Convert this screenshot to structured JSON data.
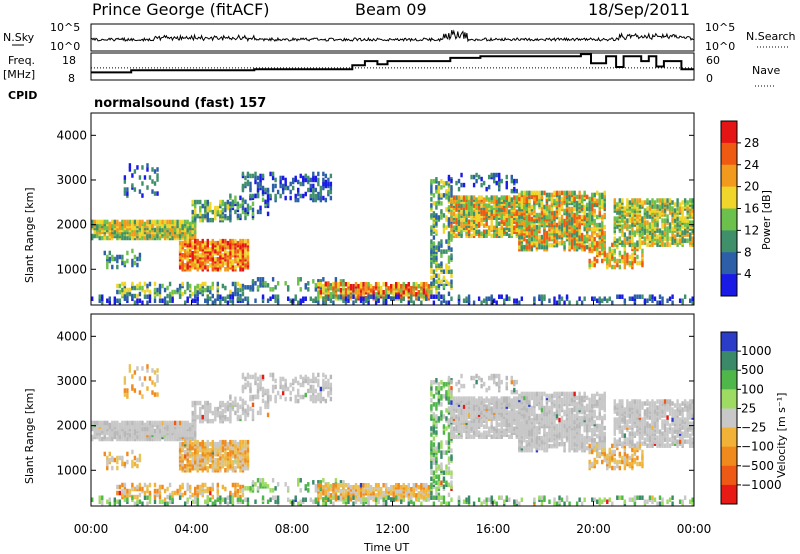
{
  "header": {
    "station": "Prince George (fitACF)",
    "beam": "Beam 09",
    "date": "18/Sep/2011"
  },
  "top_panel": {
    "left_label": "N.Sky",
    "left_ticks": [
      "10^5",
      "10^0"
    ],
    "right_ticks": [
      "10^5",
      "10^0"
    ],
    "right_label": "N.Search"
  },
  "freq_panel": {
    "left_label_1": "Freq.",
    "left_label_2": "[MHz]",
    "left_ticks": [
      "18",
      "8"
    ],
    "right_ticks": [
      "60",
      "0"
    ],
    "right_label": "Nave"
  },
  "cpid": {
    "label": "CPID",
    "value": "normalsound (fast) 157"
  },
  "colors": {
    "power": [
      "#1a1ae6",
      "#2c5fa8",
      "#3f8f6a",
      "#6cc14c",
      "#f0d62a",
      "#f19a1e",
      "#ef5a12",
      "#e51515"
    ],
    "velocity": [
      "#2b3dc8",
      "#3a8a6a",
      "#4fb64a",
      "#9edb62",
      "#c8c8c8",
      "#f2b238",
      "#f08a1d",
      "#ee5a15",
      "#e81a15"
    ]
  },
  "chart_data": [
    {
      "type": "heatmap",
      "name": "power",
      "ylabel": "Slant Range [km]",
      "y_ticks": [
        "4000",
        "3000",
        "2000",
        "1000"
      ],
      "y_tick_values": [
        4000,
        3000,
        2000,
        1000
      ],
      "ylim": [
        200,
        4500
      ],
      "colorbar_label": "Power [dB]",
      "colorbar_ticks": [
        "28",
        "24",
        "20",
        "16",
        "12",
        "8",
        "4"
      ],
      "colorbar_range": [
        0,
        32
      ]
    },
    {
      "type": "heatmap",
      "name": "velocity",
      "ylabel": "Slant Range [km]",
      "y_ticks": [
        "4000",
        "3000",
        "2000",
        "1000"
      ],
      "y_tick_values": [
        4000,
        3000,
        2000,
        1000
      ],
      "ylim": [
        200,
        4500
      ],
      "colorbar_label": "Velocity [m s⁻¹]",
      "colorbar_ticks": [
        "1000",
        "500",
        "100",
        "25",
        "−25",
        "−100",
        "−500",
        "−1000"
      ]
    }
  ],
  "x_axis": {
    "label": "Time UT",
    "ticks": [
      "00:00",
      "04:00",
      "08:00",
      "12:00",
      "16:00",
      "20:00",
      "00:00"
    ],
    "range_hours": [
      0,
      24
    ]
  },
  "frequency_series": {
    "x_hours": [
      0,
      1.6,
      1.6,
      6.5,
      6.5,
      10.4,
      10.4,
      10.9,
      10.9,
      11.4,
      11.4,
      11.8,
      11.8,
      14.3,
      14.3,
      15.5,
      15.5,
      19.5,
      19.5,
      19.9,
      19.9,
      20.5,
      20.5,
      20.9,
      20.9,
      21.2,
      21.2,
      21.9,
      21.9,
      22.2,
      22.2,
      22.5,
      22.5,
      22.8,
      22.8,
      23.5,
      23.5,
      24
    ],
    "freq_mhz": [
      10.8,
      10.8,
      11.6,
      11.6,
      12.0,
      12.0,
      13.5,
      13.5,
      15.0,
      15.0,
      13.8,
      13.8,
      15.0,
      15.0,
      16.2,
      16.2,
      16.8,
      16.8,
      17.6,
      17.6,
      14.2,
      14.2,
      16.8,
      16.8,
      12.8,
      12.8,
      16.8,
      16.8,
      15.0,
      15.0,
      16.8,
      16.8,
      13.0,
      13.0,
      15.0,
      15.0,
      12.0,
      12.0
    ],
    "nave_dotted": 12.5
  }
}
